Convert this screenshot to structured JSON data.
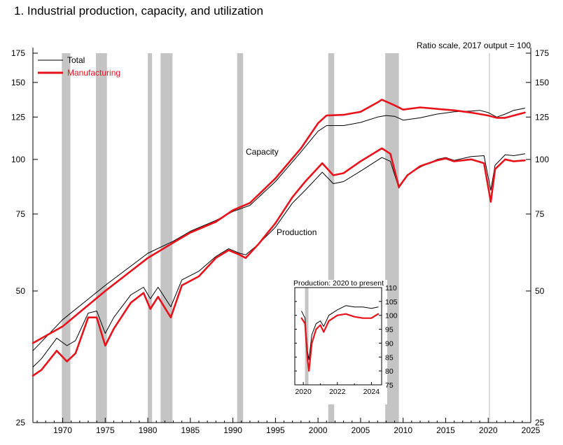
{
  "chart_data": [
    {
      "type": "line",
      "title": "1.  Industrial production, capacity, and utilization",
      "note": "Ratio scale, 2017 output = 100",
      "scale": "log",
      "xlim": [
        1966.5,
        2025
      ],
      "ylim": [
        25,
        175
      ],
      "x_ticks": [
        1970,
        1975,
        1980,
        1985,
        1990,
        1995,
        2000,
        2005,
        2010,
        2015,
        2020,
        2025
      ],
      "x_tick_labels": [
        "1970",
        "1975",
        "1980",
        "1985",
        "1990",
        "1995",
        "2000",
        "2005",
        "2010",
        "2015",
        "2020",
        "2025"
      ],
      "y_ticks": [
        25,
        50,
        75,
        100,
        125,
        150,
        175
      ],
      "y_tick_labels_left": [
        "25",
        "50",
        "75",
        "100",
        "125",
        "150",
        "175"
      ],
      "y_tick_labels_right": [
        "25",
        "50",
        "75",
        "100",
        "125",
        "150",
        "175"
      ],
      "recessions": [
        [
          1969.9,
          1970.9
        ],
        [
          1973.9,
          1975.2
        ],
        [
          1980.0,
          1980.5
        ],
        [
          1981.5,
          1982.9
        ],
        [
          1990.5,
          1991.2
        ],
        [
          2001.2,
          2001.9
        ],
        [
          2007.9,
          2009.5
        ],
        [
          2020.1,
          2020.3
        ]
      ],
      "legend": {
        "position": "top-left",
        "total": "Total",
        "manufacturing": "Manufacturing"
      },
      "annotations": {
        "capacity": "Capacity",
        "production": "Production"
      },
      "series": [
        {
          "name": "Total",
          "line": "capacity",
          "color": "#000000",
          "points": [
            [
              1966.5,
              36.5
            ],
            [
              1970,
              43
            ],
            [
              1975,
              51.5
            ],
            [
              1980,
              61
            ],
            [
              1983,
              65
            ],
            [
              1985,
              68.5
            ],
            [
              1988,
              72.5
            ],
            [
              1990,
              76
            ],
            [
              1992,
              78.5
            ],
            [
              1995,
              89
            ],
            [
              1998,
              104
            ],
            [
              2000,
              116
            ],
            [
              2001,
              119.5
            ],
            [
              2003,
              119.5
            ],
            [
              2005,
              121.5
            ],
            [
              2007,
              125
            ],
            [
              2008,
              126
            ],
            [
              2009,
              125.5
            ],
            [
              2010,
              123
            ],
            [
              2012,
              124.5
            ],
            [
              2014,
              127
            ],
            [
              2016,
              128.5
            ],
            [
              2018,
              129
            ],
            [
              2019,
              129.5
            ],
            [
              2020,
              128
            ],
            [
              2021,
              125
            ],
            [
              2022,
              127
            ],
            [
              2023,
              129.5
            ],
            [
              2024.3,
              131
            ]
          ]
        },
        {
          "name": "Manufacturing",
          "line": "capacity",
          "color": "#e8121b",
          "points": [
            [
              1966.5,
              38
            ],
            [
              1970,
              41.5
            ],
            [
              1975,
              50
            ],
            [
              1980,
              59.5
            ],
            [
              1983,
              64.5
            ],
            [
              1985,
              68
            ],
            [
              1988,
              72
            ],
            [
              1990,
              76.5
            ],
            [
              1992,
              79.5
            ],
            [
              1995,
              90.5
            ],
            [
              1998,
              106
            ],
            [
              2000,
              121
            ],
            [
              2001,
              126
            ],
            [
              2003,
              126.5
            ],
            [
              2005,
              128.5
            ],
            [
              2007,
              135
            ],
            [
              2007.5,
              137
            ],
            [
              2009,
              133
            ],
            [
              2010,
              130
            ],
            [
              2012,
              131.5
            ],
            [
              2015,
              130
            ],
            [
              2016,
              129.5
            ],
            [
              2018,
              128
            ],
            [
              2020,
              126
            ],
            [
              2021,
              124.5
            ],
            [
              2022,
              124.5
            ],
            [
              2023,
              126
            ],
            [
              2024.3,
              128
            ]
          ]
        },
        {
          "name": "Total",
          "line": "production",
          "color": "#000000",
          "points": [
            [
              1966.5,
              33.5
            ],
            [
              1967.5,
              35
            ],
            [
              1969.3,
              39
            ],
            [
              1970.5,
              37.5
            ],
            [
              1971.5,
              38.5
            ],
            [
              1973,
              44.5
            ],
            [
              1974,
              45
            ],
            [
              1975,
              40
            ],
            [
              1976,
              43.5
            ],
            [
              1978,
              49
            ],
            [
              1979.5,
              51
            ],
            [
              1980.3,
              48
            ],
            [
              1981.2,
              51
            ],
            [
              1982.7,
              46
            ],
            [
              1984,
              53
            ],
            [
              1986,
              55.5
            ],
            [
              1988,
              60
            ],
            [
              1989.5,
              62.5
            ],
            [
              1990.8,
              61
            ],
            [
              1991.5,
              60.5
            ],
            [
              1993,
              64
            ],
            [
              1995,
              70
            ],
            [
              1997,
              79.5
            ],
            [
              1998.5,
              85
            ],
            [
              2000.5,
              93.5
            ],
            [
              2001.8,
              88
            ],
            [
              2003,
              89
            ],
            [
              2005,
              94
            ],
            [
              2007.5,
              101
            ],
            [
              2008.5,
              99
            ],
            [
              2009.5,
              86
            ],
            [
              2010.5,
              92
            ],
            [
              2012,
              96
            ],
            [
              2014,
              100
            ],
            [
              2015,
              101
            ],
            [
              2016,
              99.5
            ],
            [
              2018,
              101.5
            ],
            [
              2019.5,
              102
            ],
            [
              2020.3,
              85
            ],
            [
              2020.8,
              97
            ],
            [
              2022,
              102.5
            ],
            [
              2023,
              102
            ],
            [
              2024.3,
              103
            ]
          ]
        },
        {
          "name": "Manufacturing",
          "line": "production",
          "color": "#e8121b",
          "points": [
            [
              1966.5,
              32
            ],
            [
              1967.5,
              33
            ],
            [
              1969.3,
              36.5
            ],
            [
              1970.5,
              34.5
            ],
            [
              1971.5,
              36
            ],
            [
              1973,
              43.5
            ],
            [
              1974,
              43.5
            ],
            [
              1975,
              37.5
            ],
            [
              1976,
              41
            ],
            [
              1978,
              47
            ],
            [
              1979.5,
              49.5
            ],
            [
              1980.3,
              45.5
            ],
            [
              1981.2,
              48.5
            ],
            [
              1982.7,
              43.5
            ],
            [
              1984,
              51.5
            ],
            [
              1986,
              54
            ],
            [
              1988,
              59.5
            ],
            [
              1989.5,
              62
            ],
            [
              1990.8,
              60.5
            ],
            [
              1991.5,
              59.5
            ],
            [
              1993,
              64
            ],
            [
              1995,
              71.5
            ],
            [
              1997,
              82
            ],
            [
              1998.5,
              89
            ],
            [
              2000.5,
              98
            ],
            [
              2001.8,
              92
            ],
            [
              2003,
              93
            ],
            [
              2005,
              99
            ],
            [
              2007.5,
              106
            ],
            [
              2008.5,
              103
            ],
            [
              2009.5,
              86.5
            ],
            [
              2010.5,
              92
            ],
            [
              2012,
              96.5
            ],
            [
              2014,
              99.5
            ],
            [
              2015,
              100.5
            ],
            [
              2016,
              99
            ],
            [
              2018,
              100
            ],
            [
              2019.5,
              98
            ],
            [
              2020.3,
              80
            ],
            [
              2020.8,
              95
            ],
            [
              2022,
              100
            ],
            [
              2023,
              99
            ],
            [
              2024.3,
              99.5
            ]
          ]
        }
      ]
    },
    {
      "type": "line",
      "title": "Production: 2020 to present",
      "xlim": [
        2019.5,
        2024.6
      ],
      "ylim": [
        75,
        110
      ],
      "x_ticks": [
        2020,
        2022,
        2024
      ],
      "x_tick_labels": [
        "2020",
        "2022",
        "2024"
      ],
      "y_ticks": [
        75,
        80,
        85,
        90,
        95,
        100,
        105,
        110
      ],
      "y_tick_labels": [
        "75",
        "80",
        "85",
        "90",
        "95",
        "100",
        "105",
        "110"
      ],
      "recessions": [
        [
          2020.1,
          2020.3
        ]
      ],
      "series": [
        {
          "name": "Total",
          "color": "#000000",
          "points": [
            [
              2019.9,
              101.5
            ],
            [
              2020.1,
              99
            ],
            [
              2020.25,
              87
            ],
            [
              2020.33,
              84
            ],
            [
              2020.5,
              93
            ],
            [
              2020.75,
              97
            ],
            [
              2021,
              98
            ],
            [
              2021.2,
              96
            ],
            [
              2021.5,
              100
            ],
            [
              2022,
              102
            ],
            [
              2022.5,
              103.5
            ],
            [
              2023,
              103
            ],
            [
              2023.5,
              103
            ],
            [
              2024,
              102.5
            ],
            [
              2024.4,
              103
            ]
          ]
        },
        {
          "name": "Manufacturing",
          "color": "#e8121b",
          "points": [
            [
              2019.9,
              99
            ],
            [
              2020.1,
              97
            ],
            [
              2020.25,
              84
            ],
            [
              2020.33,
              80
            ],
            [
              2020.5,
              90
            ],
            [
              2020.75,
              95
            ],
            [
              2021,
              96.5
            ],
            [
              2021.2,
              94
            ],
            [
              2021.5,
              98
            ],
            [
              2022,
              100
            ],
            [
              2022.5,
              100.5
            ],
            [
              2023,
              99.5
            ],
            [
              2023.5,
              99
            ],
            [
              2024,
              99
            ],
            [
              2024.4,
              100.5
            ]
          ]
        }
      ]
    }
  ]
}
